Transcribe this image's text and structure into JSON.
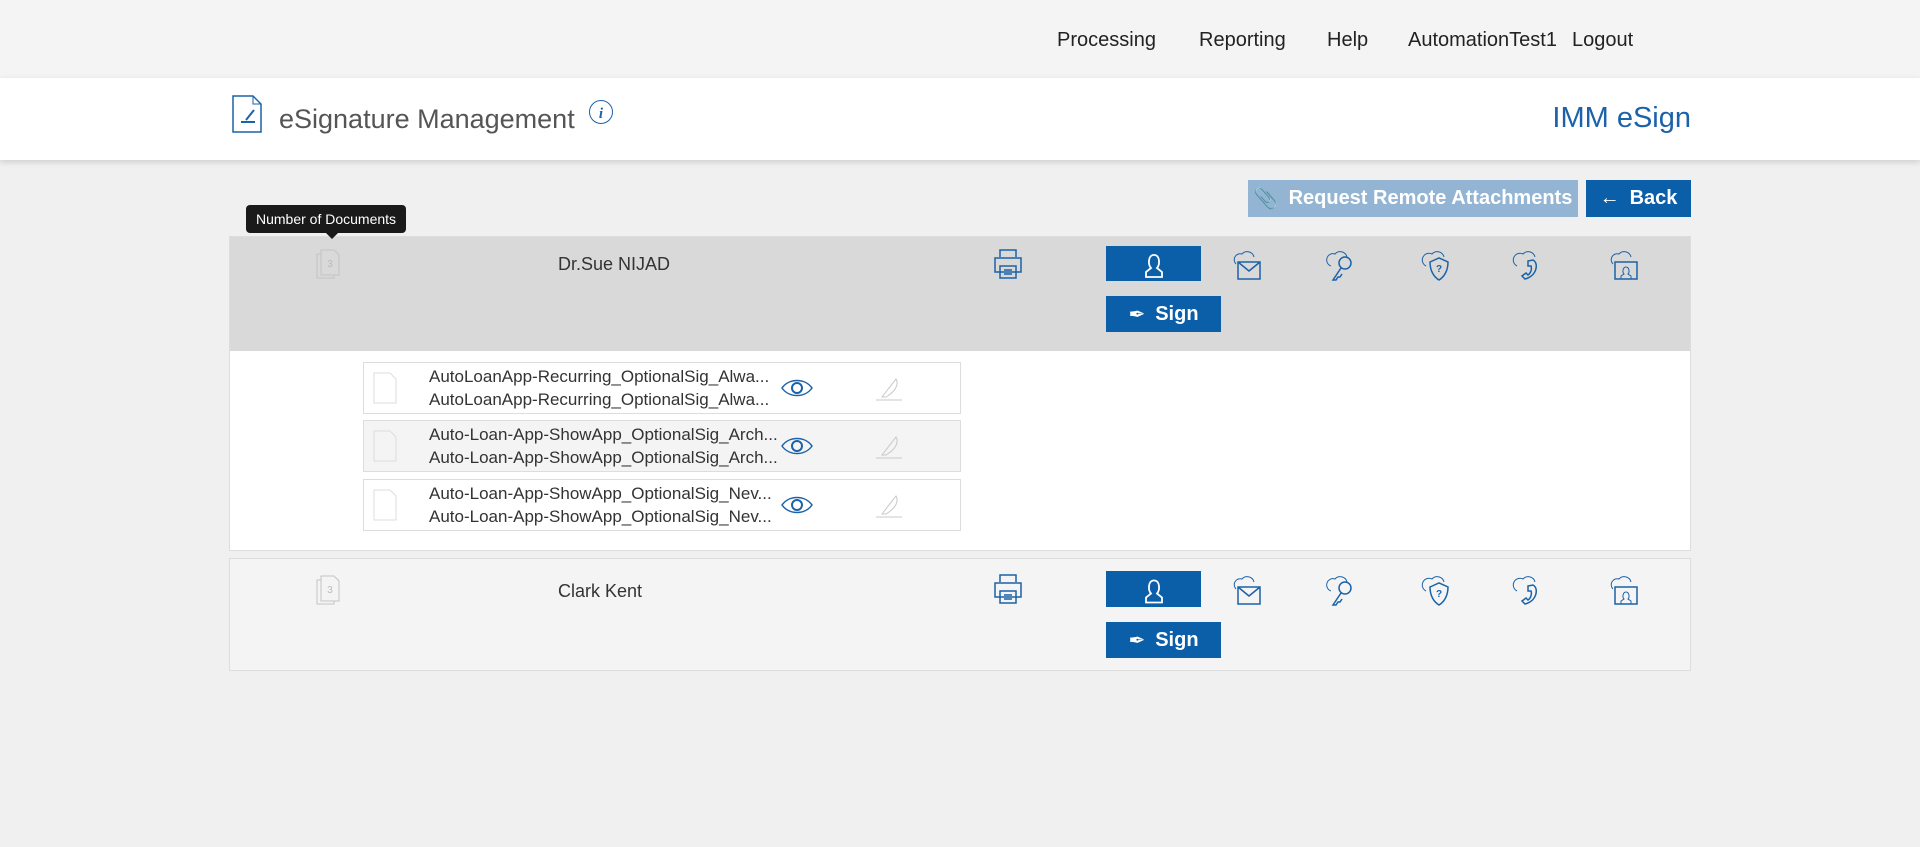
{
  "nav": {
    "items": [
      "Processing",
      "Reporting",
      "Help",
      "AutomationTest1",
      "Logout"
    ]
  },
  "header": {
    "title": "eSignature Management",
    "brand": "IMM eSign"
  },
  "toolbar": {
    "request_label": "Request Remote Attachments",
    "back_label": "Back"
  },
  "tooltip": "Number of Documents",
  "colors": {
    "primary": "#0b5ea8",
    "disabled": "#93b5d3"
  },
  "signers": [
    {
      "name": "Dr.Sue NIJAD",
      "doc_count": "3",
      "sign_label": "Sign",
      "expanded": true,
      "documents": [
        {
          "line1": "AutoLoanApp-Recurring_OptionalSig_Alwa...",
          "line2": "AutoLoanApp-Recurring_OptionalSig_Alwa..."
        },
        {
          "line1": "Auto-Loan-App-ShowApp_OptionalSig_Arch...",
          "line2": "Auto-Loan-App-ShowApp_OptionalSig_Arch..."
        },
        {
          "line1": "Auto-Loan-App-ShowApp_OptionalSig_Nev...",
          "line2": "Auto-Loan-App-ShowApp_OptionalSig_Nev..."
        }
      ]
    },
    {
      "name": "Clark Kent",
      "doc_count": "3",
      "sign_label": "Sign",
      "expanded": false
    }
  ]
}
